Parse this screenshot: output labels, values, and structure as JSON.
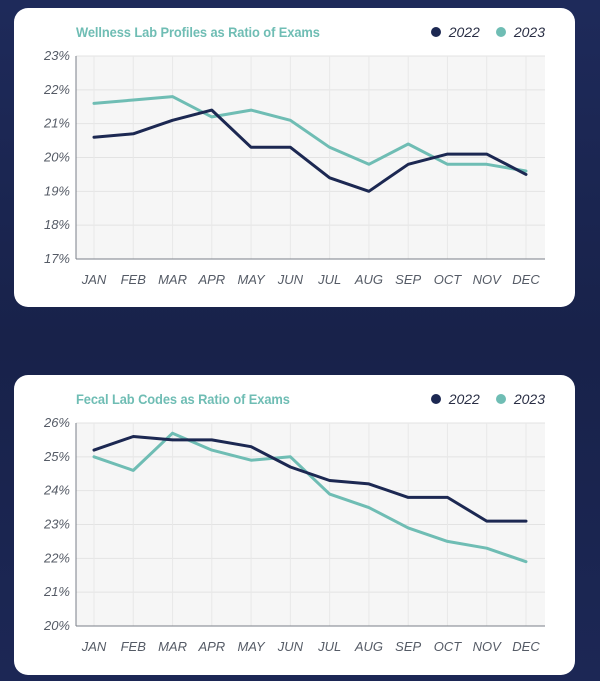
{
  "colors": {
    "series_2022": "#1c2852",
    "series_2023": "#6fbdb4",
    "background": "#1b2550",
    "grid": "#e6e6e6",
    "plot_bg": "#f6f6f6"
  },
  "chart_data": [
    {
      "type": "line",
      "title": "Wellness Lab Profiles as Ratio of Exams",
      "xlabel": "",
      "ylabel": "",
      "categories": [
        "JAN",
        "FEB",
        "MAR",
        "APR",
        "MAY",
        "JUN",
        "JUL",
        "AUG",
        "SEP",
        "OCT",
        "NOV",
        "DEC"
      ],
      "ylim": [
        17,
        23
      ],
      "yticks": [
        "17%",
        "18%",
        "19%",
        "20%",
        "21%",
        "22%",
        "23%"
      ],
      "legend": "top-right",
      "grid": true,
      "series": [
        {
          "name": "2022",
          "color": "#1c2852",
          "values": [
            20.6,
            20.7,
            21.1,
            21.4,
            20.3,
            20.3,
            19.4,
            19.0,
            19.8,
            20.1,
            20.1,
            19.5
          ]
        },
        {
          "name": "2023",
          "color": "#6fbdb4",
          "values": [
            21.6,
            21.7,
            21.8,
            21.2,
            21.4,
            21.1,
            20.3,
            19.8,
            20.4,
            19.8,
            19.8,
            19.6
          ]
        }
      ]
    },
    {
      "type": "line",
      "title": "Fecal Lab Codes as Ratio of Exams",
      "xlabel": "",
      "ylabel": "",
      "categories": [
        "JAN",
        "FEB",
        "MAR",
        "APR",
        "MAY",
        "JUN",
        "JUL",
        "AUG",
        "SEP",
        "OCT",
        "NOV",
        "DEC"
      ],
      "ylim": [
        20,
        26
      ],
      "yticks": [
        "20%",
        "21%",
        "22%",
        "23%",
        "24%",
        "25%",
        "26%"
      ],
      "legend": "top-right",
      "grid": true,
      "series": [
        {
          "name": "2022",
          "color": "#1c2852",
          "values": [
            25.2,
            25.6,
            25.5,
            25.5,
            25.3,
            24.7,
            24.3,
            24.2,
            23.8,
            23.8,
            23.1,
            23.1
          ]
        },
        {
          "name": "2023",
          "color": "#6fbdb4",
          "values": [
            25.0,
            24.6,
            25.7,
            25.2,
            24.9,
            25.0,
            23.9,
            23.5,
            22.9,
            22.5,
            22.3,
            21.9
          ]
        }
      ]
    }
  ]
}
